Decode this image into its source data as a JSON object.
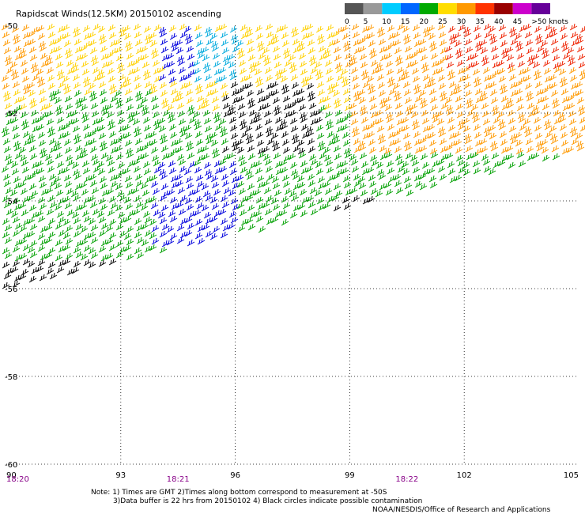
{
  "chart_data": {
    "type": "wind-barb map",
    "title": "Rapidscat Winds(12.5KM) 20150102 ascending",
    "x_ticks": [
      "90",
      "93",
      "96",
      "99",
      "102",
      "105"
    ],
    "x_values": [
      90,
      93,
      96,
      99,
      102,
      105
    ],
    "y_ticks": [
      "-50",
      "-52",
      "-54",
      "-56",
      "-58",
      "-60"
    ],
    "y_values": [
      -50,
      -52,
      -54,
      -56,
      -58,
      -60
    ],
    "xlim": [
      90,
      105
    ],
    "ylim": [
      -60,
      -50
    ],
    "grid": "dotted",
    "times": [
      {
        "label": "18:20",
        "lon": 90
      },
      {
        "label": "18:21",
        "lon": 94.5
      },
      {
        "label": "18:22",
        "lon": 100.5
      }
    ],
    "legend": {
      "placement": "top-right",
      "labels": [
        "0",
        "5",
        "10",
        "15",
        "20",
        "25",
        "30",
        "35",
        "40",
        "45",
        ">50 knots"
      ],
      "colors": [
        "#555555",
        "#999999",
        "#00ccff",
        "#0066ff",
        "#00aa00",
        "#ffdd00",
        "#ff9900",
        "#ff3300",
        "#990000",
        "#cc00cc",
        "#660099"
      ]
    },
    "colors": {
      "black": "#000000",
      "blue": "#0000dd",
      "cyan": "#00aadd",
      "green": "#00a000",
      "yellow": "#ffd000",
      "orange": "#ff9900",
      "red": "#ee2200"
    },
    "notes": [
      "Note: 1) Times are GMT 2)Times along bottom correspond to measurement at -50S",
      "3)Data buffer is 22 hrs from 20150102 4) Black circles indicate possible contamination",
      "NOAA/NESDIS/Office of Research and Applications"
    ]
  }
}
